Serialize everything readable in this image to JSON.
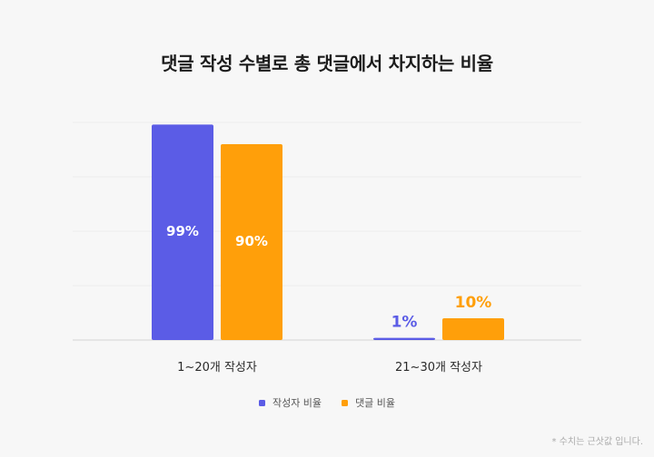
{
  "chart_data": {
    "type": "bar",
    "title": "댓글 작성 수별로 총 댓글에서 차지하는 비율",
    "categories": [
      "1~20개 작성자",
      "21~30개 작성자"
    ],
    "series": [
      {
        "name": "작성자 비율",
        "values": [
          99,
          1
        ],
        "labels": [
          "99%",
          "1%"
        ],
        "color": "#5b5ce6"
      },
      {
        "name": "댓글 비율",
        "values": [
          90,
          10
        ],
        "labels": [
          "90%",
          "10%"
        ],
        "color": "#ff9f0a"
      }
    ],
    "ylim": [
      0,
      100
    ],
    "grid": true,
    "legend_position": "bottom-center",
    "footnote": "* 수치는 근삿값 입니다."
  }
}
